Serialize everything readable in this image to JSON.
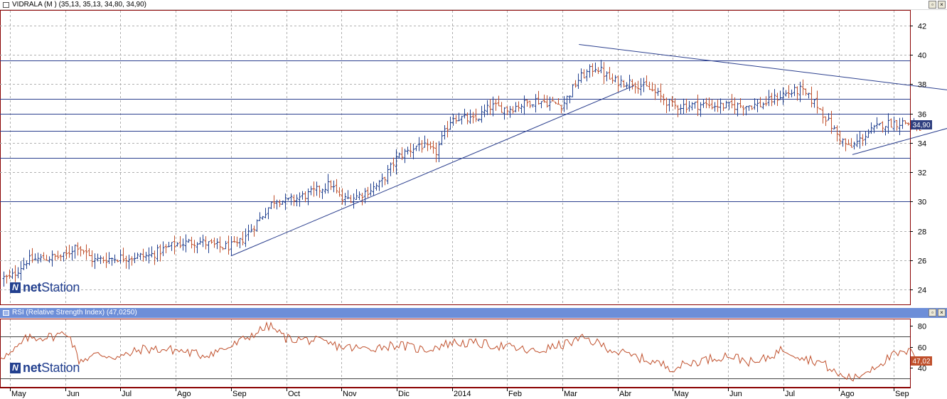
{
  "main_panel": {
    "title": "VIDRALA (M ) (35,13, 35,13, 34,80, 34,90)",
    "y_ticks": [
      "42",
      "40",
      "38",
      "36",
      "34",
      "32",
      "30",
      "28",
      "26",
      "24"
    ],
    "last_price_label": "34,90"
  },
  "rsi_panel": {
    "title": "RSI (Relative Strength Index) (47,0250)",
    "y_ticks": [
      "80",
      "60",
      "40"
    ],
    "last_value_label": "47,02"
  },
  "x_axis": {
    "labels": [
      "May",
      "Jun",
      "Jul",
      "Ago",
      "Sep",
      "Oct",
      "Nov",
      "Dic",
      "2014",
      "Feb",
      "Mar",
      "Abr",
      "May",
      "Jun",
      "Jul",
      "Ago",
      "Sep"
    ]
  },
  "branding": {
    "logo_prefix": "net",
    "logo_suffix": "Station"
  },
  "window_buttons": {
    "restore": "▫",
    "close": "×"
  },
  "colors": {
    "up_bar": "#1f3f8f",
    "down_bar": "#c0502c",
    "hline": "#2b3f8e",
    "trendline": "#2b3f8e",
    "rsi_line": "#c0502c",
    "rsi_levels": "#444444",
    "price_badge": "#2f3f7f",
    "rsi_badge": "#c0502c",
    "grid": "#b0b0b0",
    "rsi_titlebar": "#6d8ed8"
  },
  "chart_data": [
    {
      "type": "ohlc",
      "series_name": "VIDRALA",
      "ylim": [
        23,
        43
      ],
      "grid": true,
      "horizontal_levels": [
        39.6,
        37.0,
        36.0,
        34.8,
        33.0,
        30.0
      ],
      "trendlines": [
        {
          "from": [
            "Sep",
            26.3
          ],
          "to": [
            "Abr",
            37.9
          ]
        },
        {
          "from": [
            "Mar",
            40.7
          ],
          "to": [
            "Sep",
            37.6
          ]
        },
        {
          "from": [
            "Ago",
            33.2
          ],
          "to": [
            "Sep",
            35.0
          ]
        }
      ],
      "anchors": [
        [
          0,
          24.8
        ],
        [
          0.3,
          26.0
        ],
        [
          1,
          26.3
        ],
        [
          1.2,
          27.1
        ],
        [
          1.5,
          26.0
        ],
        [
          2,
          26.2
        ],
        [
          2.5,
          26.3
        ],
        [
          3,
          27.1
        ],
        [
          3.4,
          27.3
        ],
        [
          3.8,
          26.9
        ],
        [
          4.1,
          27.0
        ],
        [
          4.4,
          28.3
        ],
        [
          4.8,
          30.2
        ],
        [
          5,
          30.0
        ],
        [
          5.4,
          30.5
        ],
        [
          5.8,
          31.2
        ],
        [
          6,
          30.1
        ],
        [
          6.3,
          30.4
        ],
        [
          6.7,
          31.2
        ],
        [
          7,
          33.0
        ],
        [
          7.4,
          33.9
        ],
        [
          7.7,
          33.3
        ],
        [
          8,
          35.8
        ],
        [
          8.4,
          35.5
        ],
        [
          8.7,
          36.5
        ],
        [
          9,
          36.3
        ],
        [
          9.5,
          36.9
        ],
        [
          10,
          36.6
        ],
        [
          10.3,
          38.4
        ],
        [
          10.6,
          39.2
        ],
        [
          10.9,
          38.2
        ],
        [
          11.3,
          38.1
        ],
        [
          11.6,
          37.6
        ],
        [
          12,
          36.5
        ],
        [
          12.5,
          36.6
        ],
        [
          13,
          36.5
        ],
        [
          13.6,
          36.6
        ],
        [
          14,
          37.3
        ],
        [
          14.3,
          37.6
        ],
        [
          14.6,
          36.6
        ],
        [
          15,
          34.4
        ],
        [
          15.2,
          33.6
        ],
        [
          15.5,
          34.6
        ],
        [
          15.8,
          35.3
        ],
        [
          16.2,
          35.4
        ],
        [
          16.5,
          34.9
        ]
      ]
    },
    {
      "type": "line",
      "series_name": "RSI",
      "ylim": [
        22,
        86
      ],
      "levels": [
        70,
        30
      ],
      "anchors": [
        [
          0,
          52
        ],
        [
          0.3,
          68
        ],
        [
          0.8,
          70
        ],
        [
          1.05,
          74
        ],
        [
          1.25,
          47
        ],
        [
          1.6,
          53
        ],
        [
          2,
          50
        ],
        [
          2.4,
          58
        ],
        [
          3,
          57
        ],
        [
          3.5,
          52
        ],
        [
          4,
          60
        ],
        [
          4.4,
          72
        ],
        [
          4.7,
          80
        ],
        [
          5,
          68
        ],
        [
          5.5,
          66
        ],
        [
          6,
          60
        ],
        [
          6.4,
          58
        ],
        [
          7,
          62
        ],
        [
          7.5,
          57
        ],
        [
          8,
          64
        ],
        [
          8.5,
          63
        ],
        [
          9,
          60
        ],
        [
          9.5,
          55
        ],
        [
          10,
          62
        ],
        [
          10.4,
          68
        ],
        [
          10.7,
          62
        ],
        [
          11,
          55
        ],
        [
          11.5,
          48
        ],
        [
          12,
          40
        ],
        [
          12.5,
          47
        ],
        [
          13,
          52
        ],
        [
          13.5,
          44
        ],
        [
          14,
          58
        ],
        [
          14.4,
          49
        ],
        [
          14.7,
          45
        ],
        [
          15,
          33
        ],
        [
          15.3,
          30
        ],
        [
          15.6,
          40
        ],
        [
          16,
          52
        ],
        [
          16.3,
          55
        ],
        [
          16.6,
          47
        ]
      ]
    }
  ]
}
